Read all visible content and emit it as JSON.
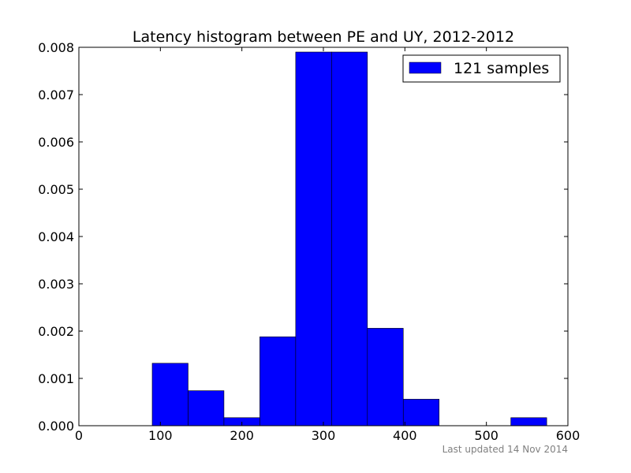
{
  "chart_data": {
    "type": "bar",
    "title": "Latency histogram between PE and UY, 2012-2012",
    "xlabel": "",
    "ylabel": "",
    "xlim": [
      0,
      600
    ],
    "ylim": [
      0,
      0.008
    ],
    "x_ticks": [
      "0",
      "100",
      "200",
      "300",
      "400",
      "500",
      "600"
    ],
    "y_ticks": [
      "0.000",
      "0.001",
      "0.002",
      "0.003",
      "0.004",
      "0.005",
      "0.006",
      "0.007",
      "0.008"
    ],
    "grid": false,
    "legend_position": "top-right",
    "bar_color": "#0000ff",
    "series": [
      {
        "name": "121 samples",
        "bins": [
          {
            "x0": 90,
            "x1": 134,
            "value": 0.00132
          },
          {
            "x0": 134,
            "x1": 178,
            "value": 0.00074
          },
          {
            "x0": 178,
            "x1": 222,
            "value": 0.00017
          },
          {
            "x0": 222,
            "x1": 266,
            "value": 0.00188
          },
          {
            "x0": 266,
            "x1": 310,
            "value": 0.0079
          },
          {
            "x0": 310,
            "x1": 354,
            "value": 0.0079
          },
          {
            "x0": 354,
            "x1": 398,
            "value": 0.00206
          },
          {
            "x0": 398,
            "x1": 442,
            "value": 0.00056
          },
          {
            "x0": 442,
            "x1": 486,
            "value": 0
          },
          {
            "x0": 486,
            "x1": 530,
            "value": 0
          },
          {
            "x0": 530,
            "x1": 574,
            "value": 0.00017
          }
        ]
      }
    ]
  },
  "footer": {
    "updated": "Last updated 14 Nov 2014"
  }
}
